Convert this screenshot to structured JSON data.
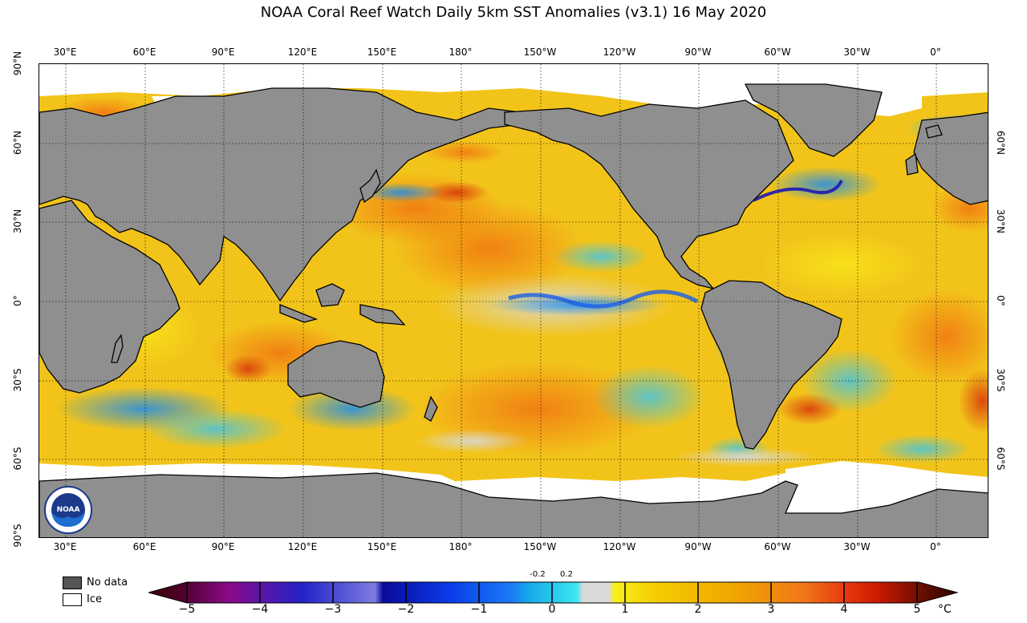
{
  "title": "NOAA Coral Reef Watch Daily 5km SST Anomalies  (v3.1)   16 May 2020",
  "lon_ticks": [
    "30°E",
    "60°E",
    "90°E",
    "120°E",
    "150°E",
    "180°",
    "150°W",
    "120°W",
    "90°W",
    "60°W",
    "30°W",
    "0°"
  ],
  "lat_ticks_left": [
    "90°N",
    "60°N",
    "30°N",
    "0°",
    "30°S",
    "60°S",
    "90°S"
  ],
  "lat_ticks_right": [
    "60°N",
    "30°N",
    "0°",
    "30°S",
    "60°S"
  ],
  "legend": {
    "nodata_label": "No data",
    "ice_label": "Ice",
    "nodata_color": "#555555",
    "ice_color": "#ffffff"
  },
  "colorbar": {
    "labels": [
      "−5",
      "−4",
      "−3",
      "−2",
      "−1",
      "0",
      "1",
      "2",
      "3",
      "4",
      "5"
    ],
    "small_labels": [
      "-0.2",
      "0.2"
    ],
    "unit": "°C"
  },
  "logo_text": "NOAA",
  "colors": {
    "land": "#8f8f8f",
    "ocean_base": "#f3c200",
    "neutral": "#d9d9d9",
    "ice": "#ffffff"
  }
}
